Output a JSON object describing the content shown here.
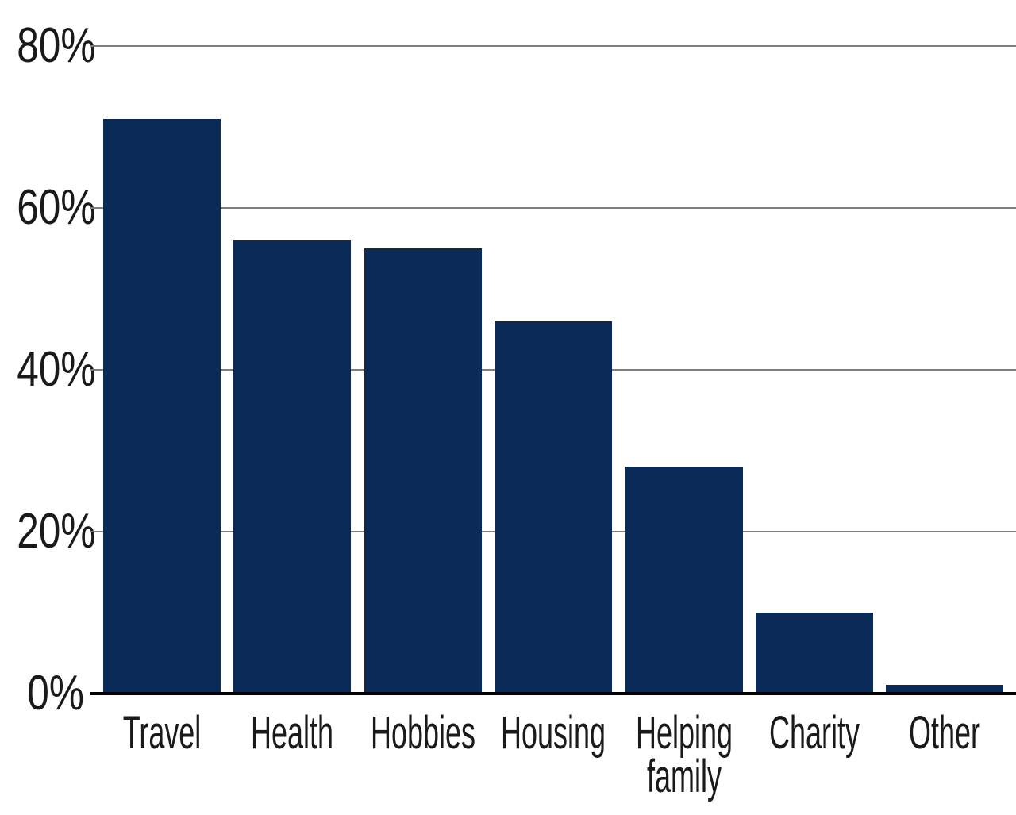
{
  "chart_data": {
    "type": "bar",
    "categories": [
      "Travel",
      "Health",
      "Hobbies",
      "Housing",
      "Helping family",
      "Charity",
      "Other"
    ],
    "values": [
      71,
      56,
      55,
      46,
      28,
      10,
      1
    ],
    "display_labels": [
      "Travel",
      "Health",
      "Hobbies",
      "Housing",
      "Helping\nfamily",
      "Charity",
      "Other"
    ],
    "unit": "%",
    "title": "",
    "xlabel": "",
    "ylabel": "",
    "ylim": [
      0,
      80
    ],
    "yticks": [
      80,
      60,
      40,
      20,
      0
    ],
    "ytick_labels": [
      "80%",
      "60%",
      "40%",
      "20%",
      "0%"
    ],
    "grid": true,
    "legend": false,
    "legend_position": "none",
    "colors": {
      "bar": "#0a2b57",
      "gridline": "#7f7f7f",
      "axis": "#000000",
      "text": "#1a1a1a",
      "background": "#ffffff"
    }
  }
}
